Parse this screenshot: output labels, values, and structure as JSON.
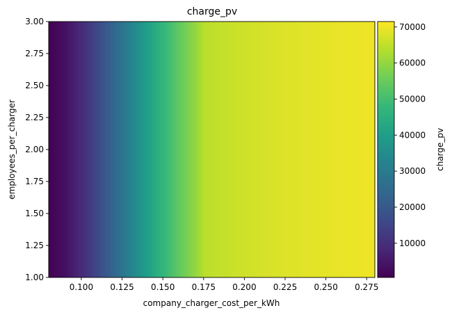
{
  "chart_data": {
    "type": "heatmap",
    "title": "charge_pv",
    "xlabel": "company_charger_cost_per_kWh",
    "ylabel": "employees_per_charger",
    "colorbar_label": "charge_pv",
    "colormap": "viridis",
    "xlim": [
      0.08,
      0.28
    ],
    "ylim": [
      1.0,
      3.0
    ],
    "x_ticks": [
      0.1,
      0.125,
      0.15,
      0.175,
      0.2,
      0.225,
      0.25,
      0.275
    ],
    "x_tick_labels": [
      "0.100",
      "0.125",
      "0.150",
      "0.175",
      "0.200",
      "0.225",
      "0.250",
      "0.275"
    ],
    "y_ticks": [
      1.0,
      1.25,
      1.5,
      1.75,
      2.0,
      2.25,
      2.5,
      2.75,
      3.0
    ],
    "y_tick_labels": [
      "1.00",
      "1.25",
      "1.50",
      "1.75",
      "2.00",
      "2.25",
      "2.50",
      "2.75",
      "3.00"
    ],
    "colorbar_range": [
      500,
      71500
    ],
    "colorbar_ticks": [
      10000,
      20000,
      30000,
      40000,
      50000,
      60000,
      70000
    ],
    "colorbar_tick_labels": [
      "10000",
      "20000",
      "30000",
      "40000",
      "50000",
      "60000",
      "70000"
    ],
    "profile_note": "value varies mainly along x; nearly constant along y",
    "x_profile": [
      {
        "x": 0.08,
        "value": 500
      },
      {
        "x": 0.09,
        "value": 3500
      },
      {
        "x": 0.1,
        "value": 9000
      },
      {
        "x": 0.11,
        "value": 16000
      },
      {
        "x": 0.12,
        "value": 24000
      },
      {
        "x": 0.13,
        "value": 32000
      },
      {
        "x": 0.14,
        "value": 40000
      },
      {
        "x": 0.15,
        "value": 47000
      },
      {
        "x": 0.16,
        "value": 54000
      },
      {
        "x": 0.17,
        "value": 60000
      },
      {
        "x": 0.176,
        "value": 64500
      },
      {
        "x": 0.18,
        "value": 64800
      },
      {
        "x": 0.2,
        "value": 66500
      },
      {
        "x": 0.225,
        "value": 68000
      },
      {
        "x": 0.25,
        "value": 69000
      },
      {
        "x": 0.28,
        "value": 70000
      }
    ]
  }
}
